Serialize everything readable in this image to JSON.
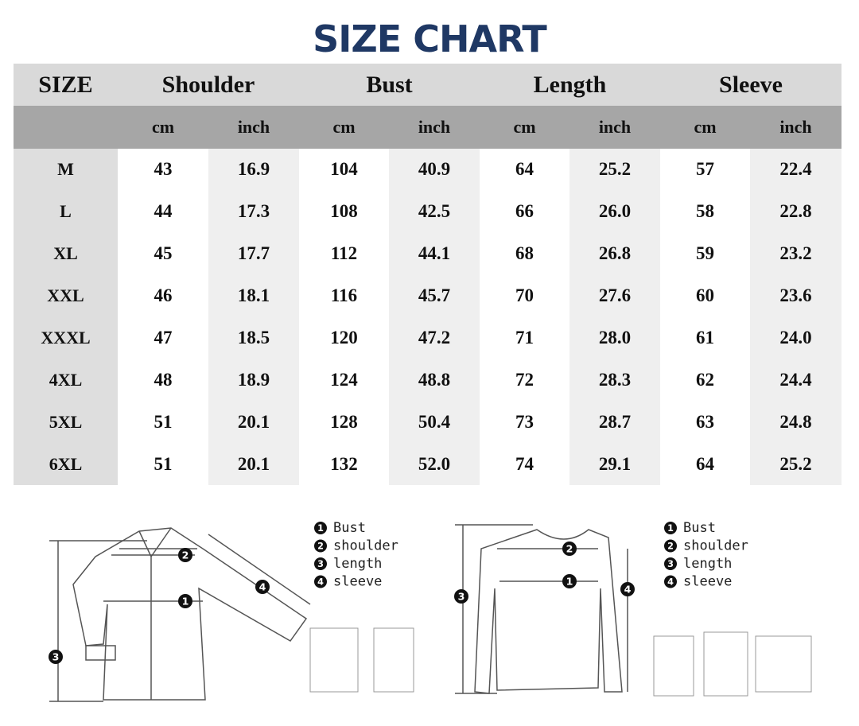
{
  "title": "SIZE CHART",
  "table": {
    "header": [
      "SIZE",
      "Shoulder",
      "Bust",
      "Length",
      "Sleeve"
    ],
    "subheader": [
      "cm",
      "inch",
      "cm",
      "inch",
      "cm",
      "inch",
      "cm",
      "inch"
    ],
    "rows": [
      [
        "M",
        "43",
        "16.9",
        "104",
        "40.9",
        "64",
        "25.2",
        "57",
        "22.4"
      ],
      [
        "L",
        "44",
        "17.3",
        "108",
        "42.5",
        "66",
        "26.0",
        "58",
        "22.8"
      ],
      [
        "XL",
        "45",
        "17.7",
        "112",
        "44.1",
        "68",
        "26.8",
        "59",
        "23.2"
      ],
      [
        "XXL",
        "46",
        "18.1",
        "116",
        "45.7",
        "70",
        "27.6",
        "60",
        "23.6"
      ],
      [
        "XXXL",
        "47",
        "18.5",
        "120",
        "47.2",
        "71",
        "28.0",
        "61",
        "24.0"
      ],
      [
        "4XL",
        "48",
        "18.9",
        "124",
        "48.8",
        "72",
        "28.3",
        "62",
        "24.4"
      ],
      [
        "5XL",
        "51",
        "20.1",
        "128",
        "50.4",
        "73",
        "28.7",
        "63",
        "24.8"
      ],
      [
        "6XL",
        "51",
        "20.1",
        "132",
        "52.0",
        "74",
        "29.1",
        "64",
        "25.2"
      ]
    ]
  },
  "diagrams": [
    {
      "legend": [
        {
          "num": "1",
          "label": "Bust"
        },
        {
          "num": "2",
          "label": "shoulder"
        },
        {
          "num": "3",
          "label": "length"
        },
        {
          "num": "4",
          "label": "sleeve"
        }
      ]
    },
    {
      "legend": [
        {
          "num": "1",
          "label": "Bust"
        },
        {
          "num": "2",
          "label": "shoulder"
        },
        {
          "num": "3",
          "label": "length"
        },
        {
          "num": "4",
          "label": "sleeve"
        }
      ]
    }
  ]
}
